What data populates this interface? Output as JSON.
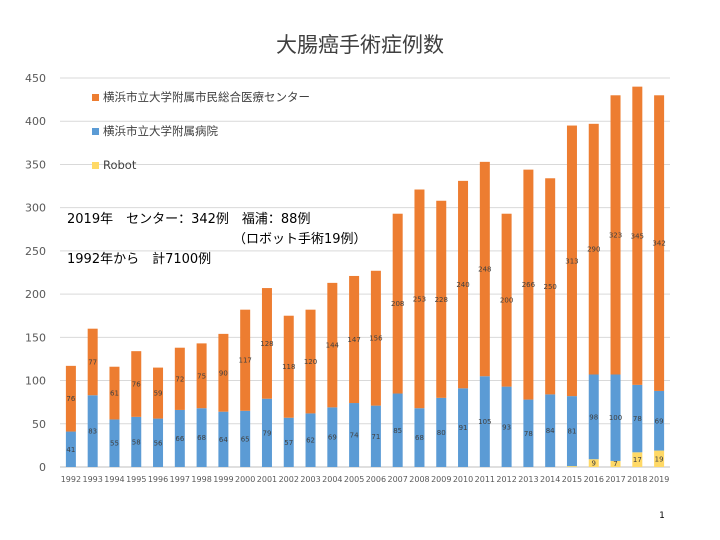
{
  "page_number": "1",
  "notes": [
    "2019年　センター：342例　福浦：88例",
    "（ロボット手術19例）",
    "1992年から　計7100例"
  ],
  "colors": {
    "center": "#ED7D31",
    "hospital": "#5B9BD5",
    "robot": "#FFD966"
  },
  "chart_data": {
    "type": "bar",
    "stacked": true,
    "title": "大腸癌手術症例数",
    "xlabel": "",
    "ylabel": "",
    "ylim": [
      0,
      450
    ],
    "yticks": [
      0,
      50,
      100,
      150,
      200,
      250,
      300,
      350,
      400,
      450
    ],
    "grid": true,
    "legend_position": "top-left",
    "categories": [
      "1992",
      "1993",
      "1994",
      "1995",
      "1996",
      "1997",
      "1998",
      "1999",
      "2000",
      "2001",
      "2002",
      "2003",
      "2004",
      "2005",
      "2006",
      "2007",
      "2008",
      "2009",
      "2010",
      "2011",
      "2012",
      "2013",
      "2014",
      "2015",
      "2016",
      "2017",
      "2018",
      "2019"
    ],
    "series": [
      {
        "name": "Robot",
        "key": "robot",
        "values": [
          0,
          0,
          0,
          0,
          0,
          0,
          0,
          0,
          0,
          0,
          0,
          0,
          0,
          0,
          0,
          0,
          0,
          0,
          0,
          0,
          0,
          0,
          0,
          1,
          9,
          7,
          17,
          19
        ],
        "labels": [
          "",
          "",
          "",
          "",
          "",
          "",
          "",
          "",
          "",
          "",
          "",
          "",
          "",
          "",
          "",
          "",
          "",
          "",
          "",
          "",
          "",
          "",
          "",
          "1",
          "9",
          "7",
          "17",
          "19"
        ]
      },
      {
        "name": "横浜市立大学附属病院",
        "key": "hospital",
        "values": [
          41,
          83,
          55,
          58,
          56,
          66,
          68,
          64,
          65,
          79,
          57,
          62,
          69,
          74,
          71,
          85,
          68,
          80,
          91,
          105,
          93,
          78,
          84,
          81,
          98,
          100,
          78,
          69
        ],
        "labels": [
          "41",
          "83",
          "55",
          "58",
          "56",
          "66",
          "68",
          "64",
          "65",
          "79",
          "57",
          "62",
          "69",
          "74",
          "71",
          "85",
          "68",
          "80",
          "91",
          "105",
          "93",
          "78",
          "84",
          "81",
          "98",
          "100",
          "78",
          "69"
        ]
      },
      {
        "name": "横浜市立大学附属市民総合医療センター",
        "key": "center",
        "values": [
          76,
          77,
          61,
          76,
          59,
          72,
          75,
          90,
          117,
          128,
          118,
          120,
          144,
          147,
          156,
          208,
          253,
          228,
          240,
          248,
          200,
          266,
          250,
          313,
          290,
          323,
          345,
          342
        ],
        "labels": [
          "76",
          "77",
          "61",
          "76",
          "59",
          "72",
          "75",
          "90",
          "117",
          "128",
          "118",
          "120",
          "144",
          "147",
          "156",
          "208",
          "253",
          "228",
          "240",
          "248",
          "200",
          "266",
          "250",
          "313",
          "290",
          "323",
          "345",
          "342"
        ]
      }
    ]
  }
}
